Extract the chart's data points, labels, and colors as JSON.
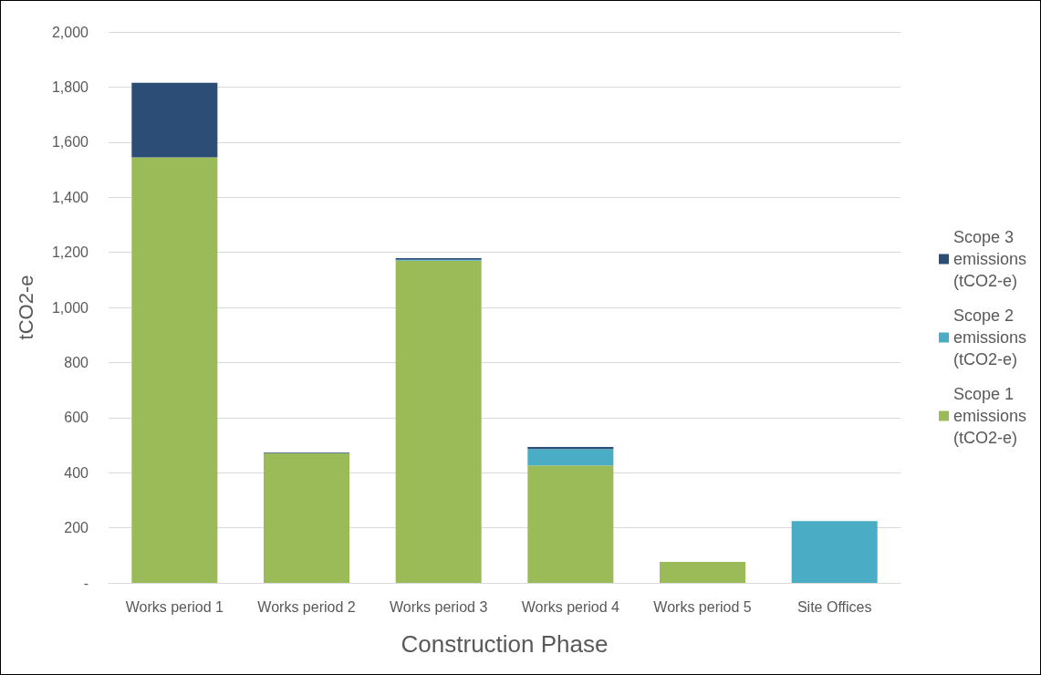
{
  "chart_data": {
    "type": "bar",
    "stacked": true,
    "xlabel": "Construction Phase",
    "ylabel": "tCO2-e",
    "categories": [
      "Works period 1",
      "Works period 2",
      "Works period 3",
      "Works period 4",
      "Works period 5",
      "Site Offices"
    ],
    "series": [
      {
        "name": "Scope 1 emissions (tCO2-e)",
        "color": "#9bbb59",
        "values": [
          1545,
          470,
          1170,
          426,
          76,
          0
        ]
      },
      {
        "name": "Scope 2 emissions (tCO2-e)",
        "color": "#4bacc6",
        "values": [
          0,
          0,
          3,
          60,
          0,
          224
        ]
      },
      {
        "name": "Scope 3 emissions (tCO2-e)",
        "color": "#2c4d75",
        "values": [
          270,
          3,
          6,
          7,
          0,
          0
        ]
      }
    ],
    "ylim": [
      0,
      2000
    ],
    "yticks": [
      {
        "value": 0,
        "label": "-"
      },
      {
        "value": 200,
        "label": "200"
      },
      {
        "value": 400,
        "label": "400"
      },
      {
        "value": 600,
        "label": "600"
      },
      {
        "value": 800,
        "label": "800"
      },
      {
        "value": 1000,
        "label": "1,000"
      },
      {
        "value": 1200,
        "label": "1,200"
      },
      {
        "value": 1400,
        "label": "1,400"
      },
      {
        "value": 1600,
        "label": "1,600"
      },
      {
        "value": 1800,
        "label": "1,800"
      },
      {
        "value": 2000,
        "label": "2,000"
      }
    ],
    "grid": "y",
    "legend": "right"
  }
}
